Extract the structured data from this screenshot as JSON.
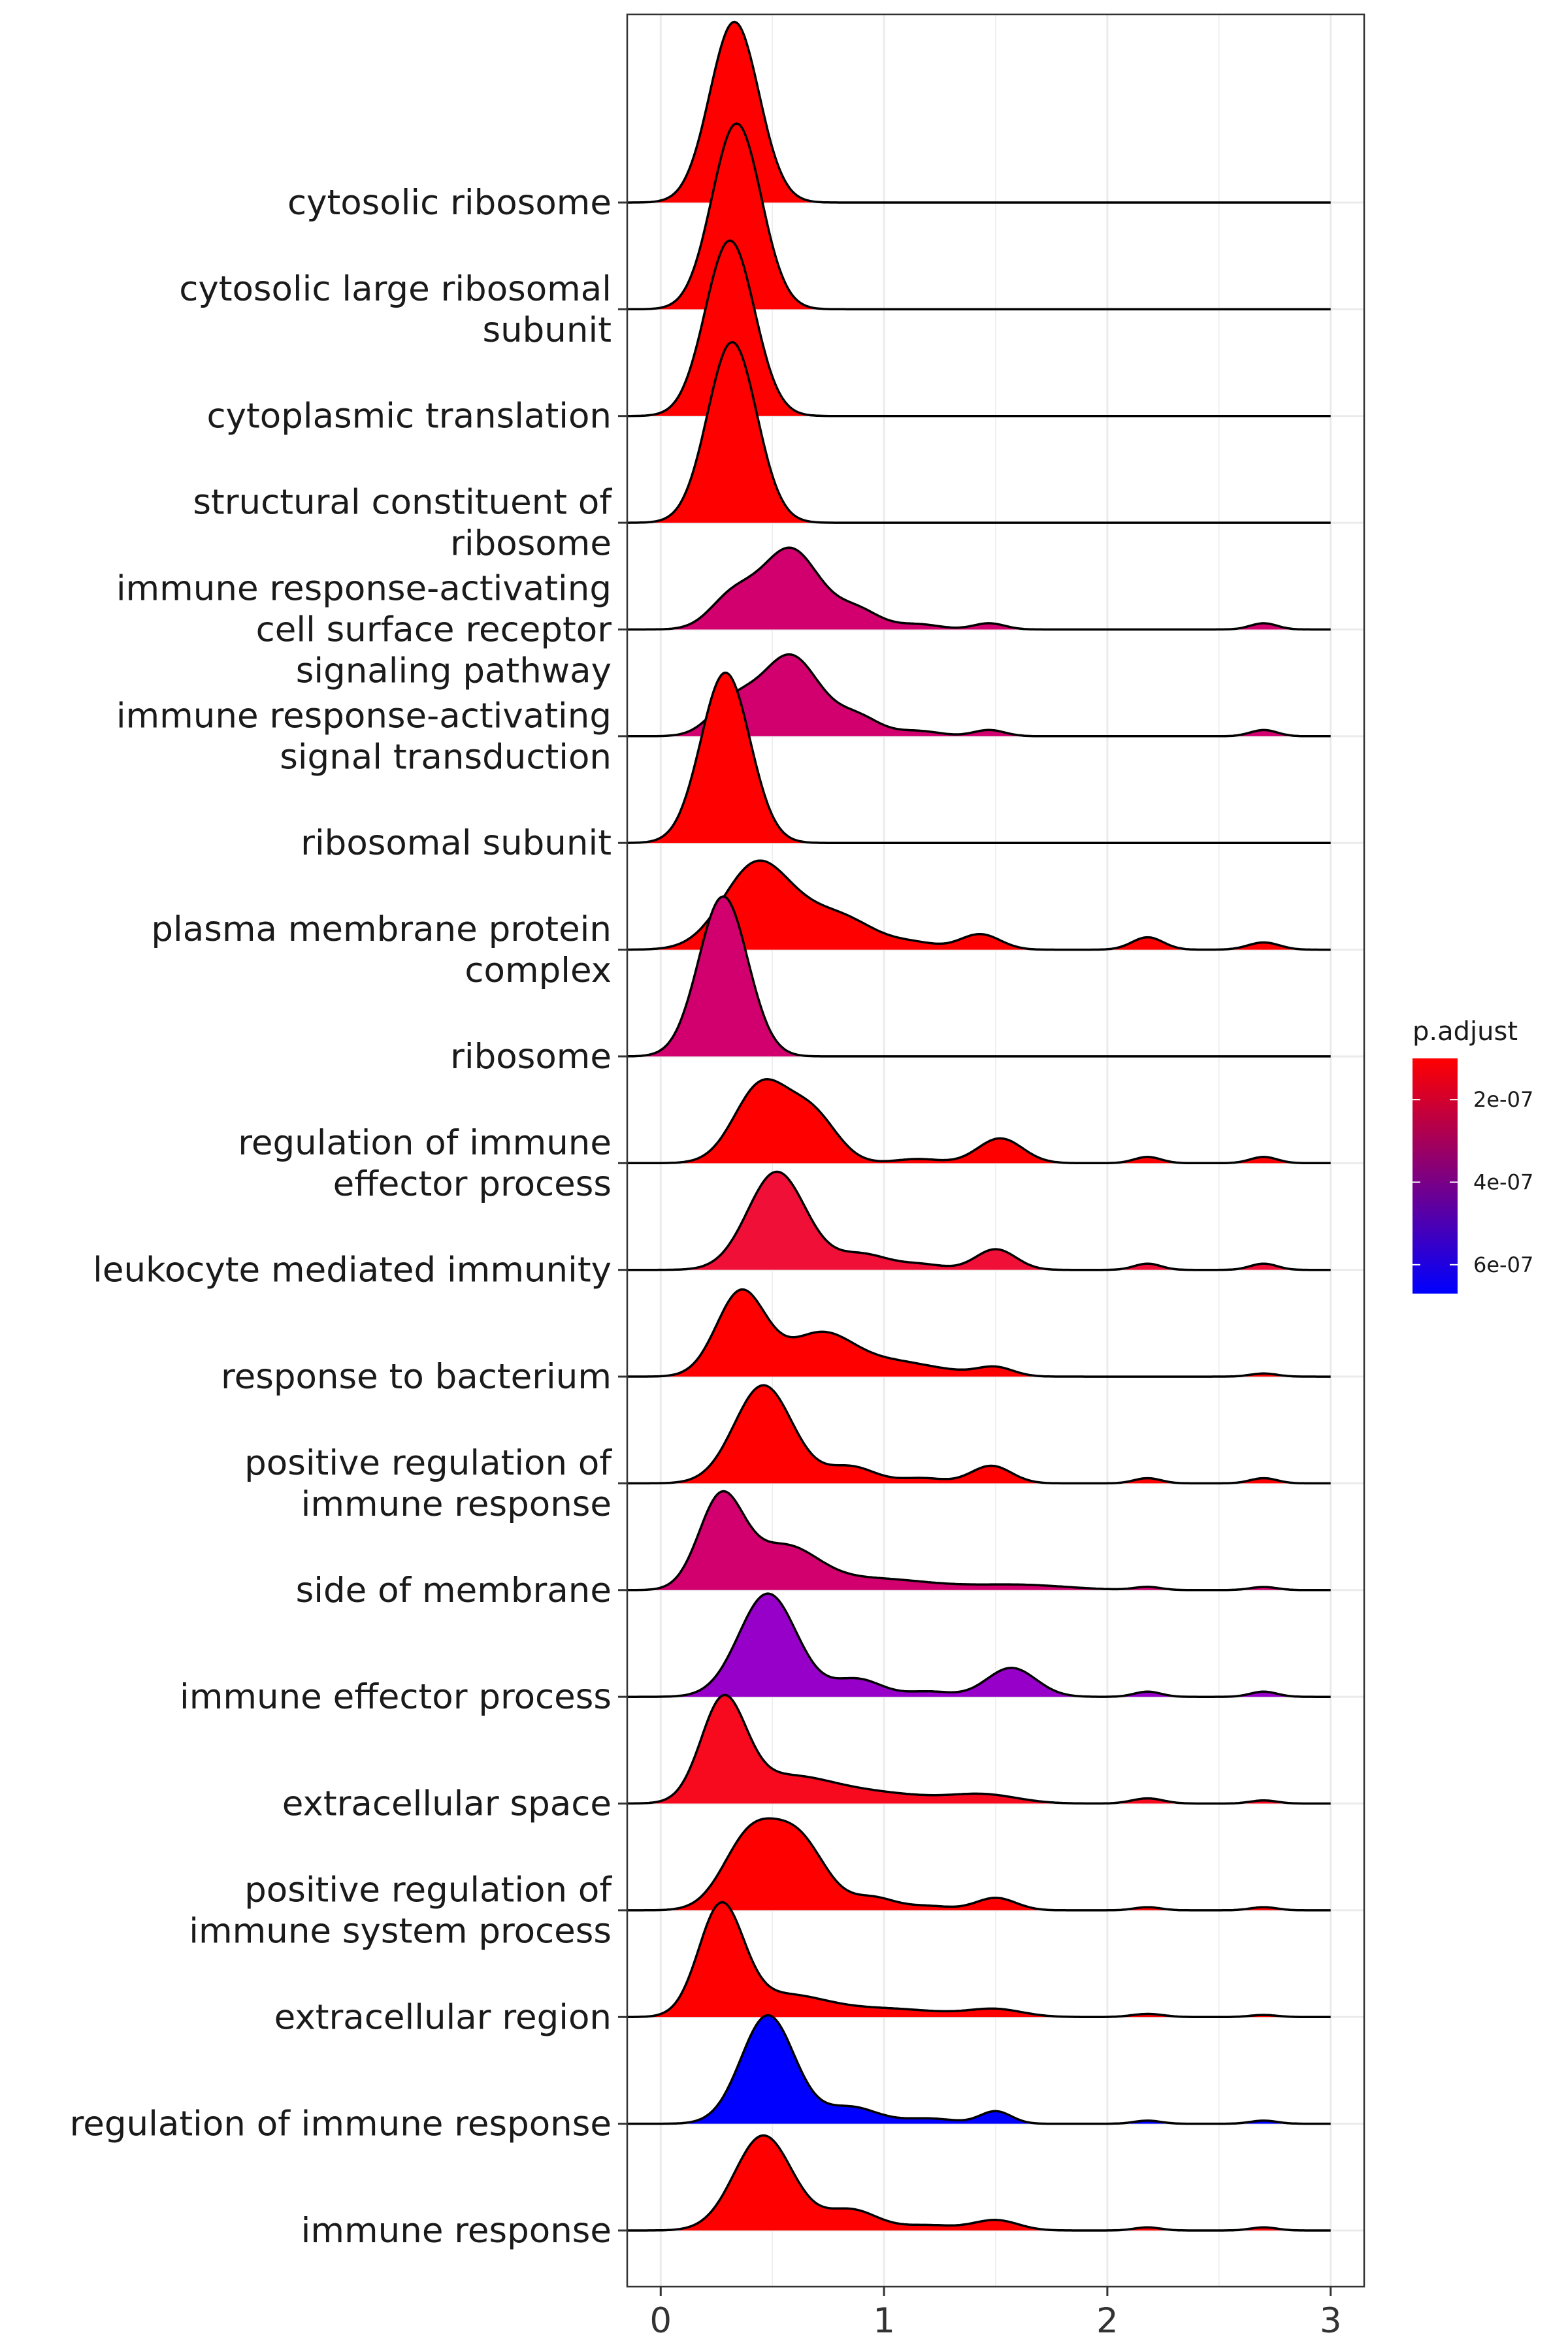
{
  "chart_data": {
    "type": "ridgeline",
    "xlim": [
      -0.15,
      3.15
    ],
    "x_ticks": [
      "0",
      "1",
      "2",
      "3"
    ],
    "x_tick_values": [
      0,
      1,
      2,
      3
    ],
    "grid": true,
    "legend": {
      "title": "p.adjust",
      "placement": "right",
      "ticks": [
        "2e-07",
        "4e-07",
        "6e-07"
      ],
      "tick_values": [
        2e-07,
        4e-07,
        6e-07
      ],
      "range": [
        1e-07,
        6.7e-07
      ],
      "color_low": "#ff0000",
      "color_high": "#0000ff"
    },
    "series": [
      {
        "name": "cytosolic ribosome",
        "label_lines": [
          "cytosolic ribosome"
        ],
        "p_adjust": 1.2e-07,
        "color": "#ff0000",
        "components": [
          [
            0.33,
            0.11,
            1.75
          ]
        ]
      },
      {
        "name": "cytosolic large ribosomal subunit",
        "label_lines": [
          "cytosolic large ribosomal",
          "subunit"
        ],
        "p_adjust": 1.2e-07,
        "color": "#ff0000",
        "components": [
          [
            0.34,
            0.11,
            1.8
          ]
        ]
      },
      {
        "name": "cytoplasmic translation",
        "label_lines": [
          "cytoplasmic translation"
        ],
        "p_adjust": 1.2e-07,
        "color": "#ff0000",
        "components": [
          [
            0.31,
            0.11,
            1.7
          ]
        ]
      },
      {
        "name": "structural constituent of ribosome",
        "label_lines": [
          "structural constituent of",
          "ribosome"
        ],
        "p_adjust": 1.2e-07,
        "color": "#ff0000",
        "components": [
          [
            0.32,
            0.11,
            1.75
          ]
        ]
      },
      {
        "name": "immune response-activating cell surface receptor signaling pathway",
        "label_lines": [
          "immune response-activating",
          "cell surface receptor",
          "signaling pathway"
        ],
        "p_adjust": 3.3e-07,
        "color": "#d2006e",
        "components": [
          [
            0.32,
            0.1,
            0.3
          ],
          [
            0.58,
            0.13,
            0.78
          ],
          [
            0.88,
            0.1,
            0.18
          ],
          [
            1.47,
            0.07,
            0.06
          ],
          [
            1.15,
            0.1,
            0.05
          ],
          [
            2.7,
            0.06,
            0.06
          ]
        ]
      },
      {
        "name": "immune response-activating signal transduction",
        "label_lines": [
          "immune response-activating",
          "signal transduction"
        ],
        "p_adjust": 3.3e-07,
        "color": "#d2006e",
        "components": [
          [
            0.32,
            0.1,
            0.3
          ],
          [
            0.58,
            0.13,
            0.78
          ],
          [
            0.88,
            0.1,
            0.18
          ],
          [
            1.47,
            0.07,
            0.06
          ],
          [
            1.15,
            0.1,
            0.05
          ],
          [
            2.7,
            0.06,
            0.06
          ]
        ]
      },
      {
        "name": "ribosomal subunit",
        "label_lines": [
          "ribosomal subunit"
        ],
        "p_adjust": 1.2e-07,
        "color": "#ff0000",
        "components": [
          [
            0.29,
            0.11,
            1.65
          ]
        ]
      },
      {
        "name": "plasma membrane protein complex",
        "label_lines": [
          "plasma membrane protein",
          "complex"
        ],
        "p_adjust": 1.2e-07,
        "color": "#ff0000",
        "components": [
          [
            0.43,
            0.15,
            0.82
          ],
          [
            0.78,
            0.17,
            0.33
          ],
          [
            1.43,
            0.09,
            0.15
          ],
          [
            1.15,
            0.1,
            0.05
          ],
          [
            2.18,
            0.07,
            0.12
          ],
          [
            2.7,
            0.07,
            0.07
          ]
        ]
      },
      {
        "name": "ribosome",
        "label_lines": [
          "ribosome"
        ],
        "p_adjust": 3.3e-07,
        "color": "#d2006e",
        "components": [
          [
            0.28,
            0.11,
            1.55
          ]
        ]
      },
      {
        "name": "regulation of immune effector process",
        "label_lines": [
          "regulation of immune",
          "effector process"
        ],
        "p_adjust": 1.2e-07,
        "color": "#ff0000",
        "components": [
          [
            0.45,
            0.12,
            0.75
          ],
          [
            0.68,
            0.11,
            0.45
          ],
          [
            1.52,
            0.1,
            0.24
          ],
          [
            1.15,
            0.1,
            0.04
          ],
          [
            2.18,
            0.06,
            0.06
          ],
          [
            2.7,
            0.06,
            0.06
          ]
        ]
      },
      {
        "name": "leukocyte mediated immunity",
        "label_lines": [
          "leukocyte mediated immunity"
        ],
        "p_adjust": 1.8e-07,
        "color": "#f00f37",
        "components": [
          [
            0.52,
            0.13,
            0.95
          ],
          [
            0.9,
            0.12,
            0.15
          ],
          [
            1.5,
            0.09,
            0.2
          ],
          [
            1.17,
            0.1,
            0.05
          ],
          [
            2.18,
            0.06,
            0.06
          ],
          [
            2.7,
            0.06,
            0.06
          ]
        ]
      },
      {
        "name": "response to bacterium",
        "label_lines": [
          "response to bacterium"
        ],
        "p_adjust": 1.2e-07,
        "color": "#ff0000",
        "components": [
          [
            0.36,
            0.11,
            0.82
          ],
          [
            0.72,
            0.15,
            0.42
          ],
          [
            1.05,
            0.15,
            0.12
          ],
          [
            1.5,
            0.08,
            0.08
          ],
          [
            1.3,
            0.15,
            0.04
          ],
          [
            2.7,
            0.06,
            0.03
          ]
        ]
      },
      {
        "name": "positive regulation of immune response",
        "label_lines": [
          "positive regulation of",
          "immune response"
        ],
        "p_adjust": 1.2e-07,
        "color": "#ff0000",
        "components": [
          [
            0.46,
            0.13,
            0.95
          ],
          [
            0.85,
            0.11,
            0.16
          ],
          [
            1.48,
            0.09,
            0.17
          ],
          [
            1.17,
            0.1,
            0.05
          ],
          [
            2.18,
            0.06,
            0.05
          ],
          [
            2.7,
            0.06,
            0.05
          ]
        ]
      },
      {
        "name": "side of membrane",
        "label_lines": [
          "side of membrane"
        ],
        "p_adjust": 3.3e-07,
        "color": "#d2006e",
        "components": [
          [
            0.27,
            0.1,
            0.88
          ],
          [
            0.55,
            0.15,
            0.4
          ],
          [
            0.95,
            0.25,
            0.11
          ],
          [
            1.6,
            0.22,
            0.05
          ],
          [
            2.18,
            0.06,
            0.03
          ],
          [
            2.7,
            0.06,
            0.03
          ]
        ]
      },
      {
        "name": "immune effector process",
        "label_lines": [
          "immune effector process"
        ],
        "p_adjust": 4.9e-07,
        "color": "#9600c8",
        "components": [
          [
            0.48,
            0.13,
            1.0
          ],
          [
            0.88,
            0.11,
            0.17
          ],
          [
            1.57,
            0.11,
            0.28
          ],
          [
            1.2,
            0.1,
            0.05
          ],
          [
            2.18,
            0.06,
            0.05
          ],
          [
            2.7,
            0.06,
            0.05
          ]
        ]
      },
      {
        "name": "extracellular space",
        "label_lines": [
          "extracellular space"
        ],
        "p_adjust": 1.5e-07,
        "color": "#f80a1e",
        "components": [
          [
            0.28,
            0.1,
            0.95
          ],
          [
            0.55,
            0.2,
            0.24
          ],
          [
            0.95,
            0.25,
            0.1
          ],
          [
            1.45,
            0.15,
            0.08
          ],
          [
            2.18,
            0.07,
            0.05
          ],
          [
            2.7,
            0.06,
            0.03
          ]
        ]
      },
      {
        "name": "positive regulation of immune system process",
        "label_lines": [
          "positive regulation of",
          "immune system process"
        ],
        "p_adjust": 1.2e-07,
        "color": "#ff0000",
        "components": [
          [
            0.4,
            0.12,
            0.7
          ],
          [
            0.62,
            0.12,
            0.65
          ],
          [
            0.95,
            0.1,
            0.12
          ],
          [
            1.5,
            0.09,
            0.12
          ],
          [
            1.2,
            0.1,
            0.04
          ],
          [
            2.18,
            0.06,
            0.03
          ],
          [
            2.7,
            0.06,
            0.03
          ]
        ]
      },
      {
        "name": "extracellular region",
        "label_lines": [
          "extracellular region"
        ],
        "p_adjust": 1.2e-07,
        "color": "#ff0000",
        "components": [
          [
            0.27,
            0.1,
            1.05
          ],
          [
            0.55,
            0.18,
            0.2
          ],
          [
            1.0,
            0.25,
            0.08
          ],
          [
            1.5,
            0.12,
            0.07
          ],
          [
            2.18,
            0.07,
            0.03
          ],
          [
            2.7,
            0.06,
            0.02
          ]
        ]
      },
      {
        "name": "regulation of immune response",
        "label_lines": [
          "regulation of immune response"
        ],
        "p_adjust": 6.7e-07,
        "color": "#0000ff",
        "components": [
          [
            0.48,
            0.12,
            1.05
          ],
          [
            0.85,
            0.12,
            0.16
          ],
          [
            1.5,
            0.07,
            0.12
          ],
          [
            1.2,
            0.12,
            0.05
          ],
          [
            2.18,
            0.06,
            0.03
          ],
          [
            2.7,
            0.06,
            0.03
          ]
        ]
      },
      {
        "name": "immune response",
        "label_lines": [
          "immune response"
        ],
        "p_adjust": 1.2e-07,
        "color": "#ff0000",
        "components": [
          [
            0.46,
            0.13,
            0.92
          ],
          [
            0.85,
            0.12,
            0.2
          ],
          [
            1.5,
            0.1,
            0.1
          ],
          [
            1.2,
            0.12,
            0.05
          ],
          [
            2.18,
            0.06,
            0.03
          ],
          [
            2.7,
            0.06,
            0.03
          ]
        ]
      }
    ]
  }
}
